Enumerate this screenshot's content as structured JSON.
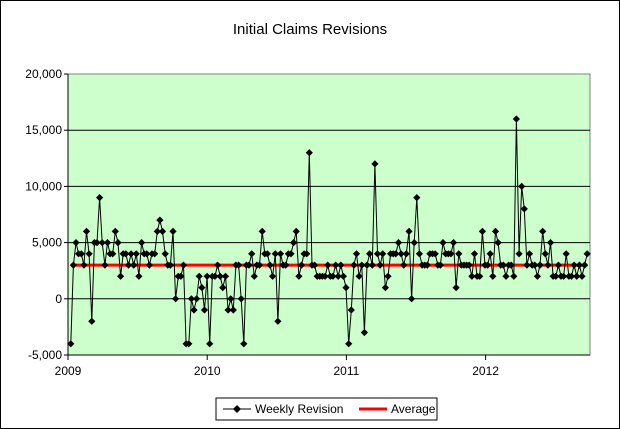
{
  "chart_data": {
    "type": "line",
    "title": "Initial Claims Revisions",
    "xlabel": "",
    "ylabel": "",
    "ylim": [
      -5000,
      20000
    ],
    "yticks": [
      "-5,000",
      "0",
      "5,000",
      "10,000",
      "15,000",
      "20,000"
    ],
    "ytick_values": [
      -5000,
      0,
      5000,
      10000,
      15000,
      20000
    ],
    "xlim": [
      2009.0,
      2012.75
    ],
    "xticks": [
      "2009",
      "2010",
      "2011",
      "2012"
    ],
    "xtick_values": [
      2009,
      2010,
      2011,
      2012
    ],
    "grid": "horizontal",
    "plot_background": "#ccffcc",
    "legend": {
      "placement": "bottom"
    },
    "series": [
      {
        "name": "Weekly Revision",
        "color": "#000000",
        "marker": "diamond",
        "values": [
          -4000,
          3000,
          5000,
          4000,
          4000,
          3000,
          6000,
          4000,
          -2000,
          5000,
          5000,
          9000,
          5000,
          3000,
          5000,
          4000,
          4000,
          6000,
          5000,
          2000,
          4000,
          4000,
          3000,
          4000,
          3000,
          4000,
          2000,
          5000,
          4000,
          4000,
          3000,
          4000,
          4000,
          6000,
          7000,
          6000,
          4000,
          3000,
          3000,
          6000,
          0,
          2000,
          2000,
          3000,
          -4000,
          -4000,
          0,
          -1000,
          0,
          2000,
          1000,
          -1000,
          2000,
          -4000,
          2000,
          2000,
          3000,
          2000,
          1000,
          2000,
          -1000,
          0,
          -1000,
          3000,
          3000,
          0,
          -4000,
          3000,
          3000,
          4000,
          2000,
          3000,
          3000,
          6000,
          4000,
          4000,
          3000,
          2000,
          4000,
          -2000,
          4000,
          3000,
          3000,
          4000,
          4000,
          5000,
          6000,
          2000,
          3000,
          4000,
          4000,
          13000,
          3000,
          3000,
          2000,
          2000,
          2000,
          2000,
          3000,
          2000,
          2000,
          3000,
          2000,
          3000,
          2000,
          1000,
          -4000,
          -1000,
          3000,
          4000,
          2000,
          3000,
          -3000,
          3000,
          4000,
          3000,
          12000,
          4000,
          3000,
          4000,
          1000,
          2000,
          4000,
          4000,
          4000,
          5000,
          4000,
          3000,
          4000,
          6000,
          0,
          5000,
          9000,
          4000,
          3000,
          3000,
          3000,
          4000,
          4000,
          4000,
          3000,
          3000,
          5000,
          4000,
          4000,
          4000,
          5000,
          1000,
          4000,
          3000,
          3000,
          3000,
          3000,
          2000,
          4000,
          2000,
          2000,
          6000,
          3000,
          3000,
          4000,
          2000,
          6000,
          5000,
          3000,
          3000,
          2000,
          3000,
          3000,
          2000,
          16000,
          4000,
          10000,
          8000,
          3000,
          4000,
          3000,
          3000,
          2000,
          3000,
          6000,
          4000,
          3000,
          5000,
          2000,
          2000,
          3000,
          2000,
          2000,
          4000,
          2000,
          2000,
          3000,
          2000,
          3000,
          2000,
          3000,
          4000
        ]
      },
      {
        "name": "Average",
        "color": "#ff0000",
        "marker": "none",
        "values": [
          3000,
          3000
        ]
      }
    ]
  }
}
